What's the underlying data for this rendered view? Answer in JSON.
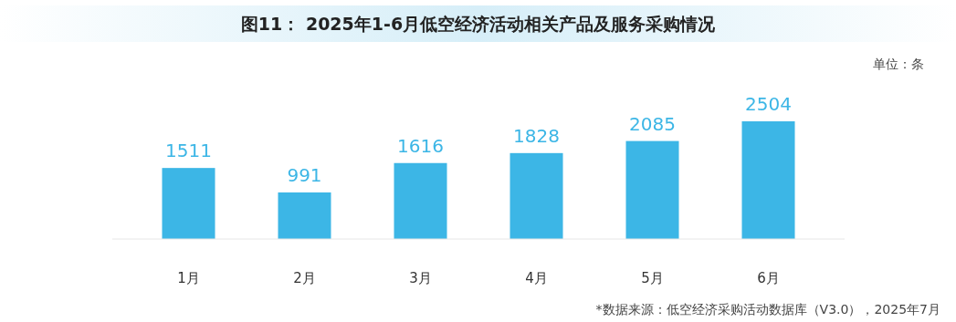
{
  "chart_data": {
    "type": "bar",
    "title": "图11：  2025年1-6月低空经济活动相关产品及服务采购情况",
    "annotations": [
      "单位：条",
      "*数据来源：低空经济采购活动数据库（V3.0），2025年7月"
    ],
    "categories": [
      "1月",
      "2月",
      "3月",
      "4月",
      "5月",
      "6月"
    ],
    "values": [
      1511,
      991,
      1616,
      1828,
      2085,
      2504
    ],
    "color": "#3cb6e6",
    "data_labels": true
  }
}
